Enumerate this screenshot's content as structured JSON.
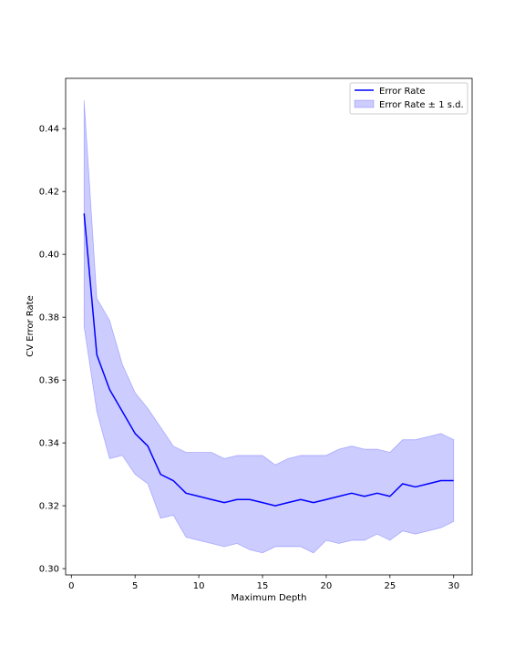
{
  "chart_data": {
    "type": "line",
    "xlabel": "Maximum Depth",
    "ylabel": "CV Error Rate",
    "xlim": [
      -0.45,
      31.45
    ],
    "ylim": [
      0.298,
      0.456
    ],
    "xticks": [
      0,
      5,
      10,
      15,
      20,
      25,
      30
    ],
    "yticks": [
      0.3,
      0.32,
      0.34,
      0.36,
      0.38,
      0.4,
      0.42,
      0.44
    ],
    "xtick_labels": [
      "0",
      "5",
      "10",
      "15",
      "20",
      "25",
      "30"
    ],
    "ytick_labels": [
      "0.30",
      "0.32",
      "0.34",
      "0.36",
      "0.38",
      "0.40",
      "0.42",
      "0.44"
    ],
    "grid": false,
    "legend_position": "top-right",
    "x": [
      1,
      2,
      3,
      4,
      5,
      6,
      7,
      8,
      9,
      10,
      11,
      12,
      13,
      14,
      15,
      16,
      17,
      18,
      19,
      20,
      21,
      22,
      23,
      24,
      25,
      26,
      27,
      28,
      29,
      30
    ],
    "series": [
      {
        "name": "Error Rate",
        "color": "#0000ff",
        "values": [
          0.413,
          0.368,
          0.357,
          0.35,
          0.343,
          0.339,
          0.33,
          0.328,
          0.324,
          0.323,
          0.322,
          0.321,
          0.322,
          0.322,
          0.321,
          0.32,
          0.321,
          0.322,
          0.321,
          0.322,
          0.323,
          0.324,
          0.323,
          0.324,
          0.323,
          0.327,
          0.326,
          0.327,
          0.328,
          0.328
        ]
      }
    ],
    "band": {
      "name": "Error Rate ± 1 s.d.",
      "color": "#0000ff",
      "opacity": 0.2,
      "upper": [
        0.449,
        0.386,
        0.379,
        0.365,
        0.356,
        0.351,
        0.345,
        0.339,
        0.337,
        0.337,
        0.337,
        0.335,
        0.336,
        0.336,
        0.336,
        0.333,
        0.335,
        0.336,
        0.336,
        0.336,
        0.338,
        0.339,
        0.338,
        0.338,
        0.337,
        0.341,
        0.341,
        0.342,
        0.343,
        0.341
      ],
      "lower": [
        0.377,
        0.35,
        0.335,
        0.336,
        0.33,
        0.327,
        0.316,
        0.317,
        0.31,
        0.309,
        0.308,
        0.307,
        0.308,
        0.306,
        0.305,
        0.307,
        0.307,
        0.307,
        0.305,
        0.309,
        0.308,
        0.309,
        0.309,
        0.311,
        0.309,
        0.312,
        0.311,
        0.312,
        0.313,
        0.315
      ]
    }
  }
}
